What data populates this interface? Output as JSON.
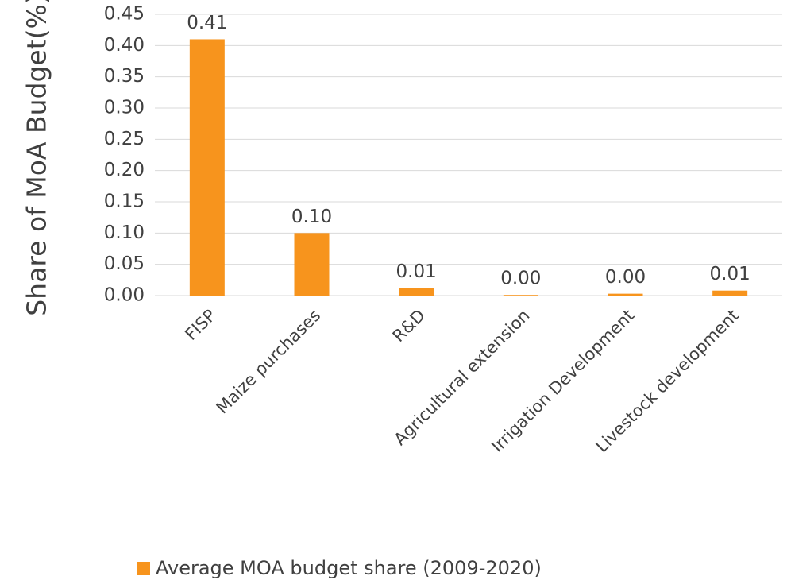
{
  "chart_data": {
    "type": "bar",
    "y_label": "Share of MoA Budget(%)",
    "categories": [
      "FISP",
      "Maize purchases",
      "R&D",
      "Agricultural extension",
      "Irrigation Development",
      "Livestock development"
    ],
    "series": [
      {
        "name": "Average MOA budget share (2009-2020)",
        "color": "#f7941d",
        "values": [
          0.41,
          0.1,
          0.012,
          0.001,
          0.003,
          0.008
        ],
        "value_labels": [
          "0.41",
          "0.10",
          "0.01",
          "0.00",
          "0.00",
          "0.01"
        ]
      }
    ],
    "ylim": [
      0,
      0.45
    ],
    "yticks": [
      {
        "value": 0,
        "label": "0.00"
      },
      {
        "value": 0.05,
        "label": "0.05"
      },
      {
        "value": 0.1,
        "label": "0.10"
      },
      {
        "value": 0.15,
        "label": "0.15"
      },
      {
        "value": 0.2,
        "label": "0.20"
      },
      {
        "value": 0.25,
        "label": "0.25"
      },
      {
        "value": 0.3,
        "label": "0.30"
      },
      {
        "value": 0.35,
        "label": "0.35"
      },
      {
        "value": 0.4,
        "label": "0.40"
      },
      {
        "value": 0.45,
        "label": "0.45"
      }
    ],
    "grid": true,
    "legend": "bottom"
  }
}
